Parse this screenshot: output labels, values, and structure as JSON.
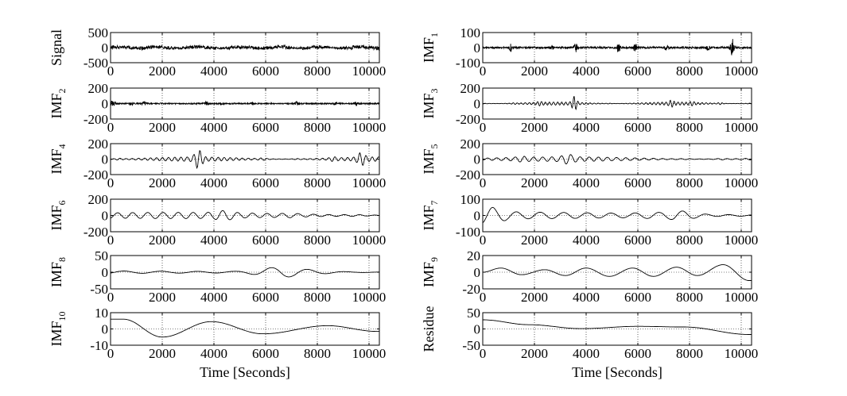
{
  "chart_data": [
    {
      "type": "line",
      "ylabel": "Signal",
      "ylim": [
        -500,
        500
      ],
      "yticks": [
        "500",
        "0",
        "-500"
      ],
      "xlim": [
        0,
        10400
      ],
      "xticks": [
        "0",
        "2000",
        "4000",
        "6000",
        "8000",
        "10000"
      ],
      "grid": true,
      "shape": {
        "kind": "noise",
        "amp": 100,
        "bursts": [
          [
            900,
            0.6
          ],
          [
            2600,
            0.5
          ],
          [
            4200,
            0.6
          ],
          [
            7200,
            0.6
          ],
          [
            8600,
            0.5
          ],
          [
            9300,
            1.3
          ],
          [
            9900,
            0.9
          ]
        ]
      }
    },
    {
      "type": "line",
      "ylabel": "IMF",
      "ylabel_sub": "1",
      "ylim": [
        -100,
        100
      ],
      "yticks": [
        "100",
        "0",
        "-100"
      ],
      "xlim": [
        0,
        10400
      ],
      "xticks": [
        "0",
        "2000",
        "4000",
        "6000",
        "8000",
        "10000"
      ],
      "grid": true,
      "shape": {
        "kind": "spiky",
        "amp": 6,
        "bursts": [
          [
            1100,
            5
          ],
          [
            2650,
            4
          ],
          [
            3600,
            7
          ],
          [
            5250,
            6
          ],
          [
            5900,
            5
          ],
          [
            7100,
            4
          ],
          [
            8700,
            4
          ],
          [
            9650,
            12
          ]
        ]
      }
    },
    {
      "type": "line",
      "ylabel": "IMF",
      "ylabel_sub": "2",
      "ylim": [
        -200,
        200
      ],
      "yticks": [
        "200",
        "0",
        "-200"
      ],
      "xlim": [
        0,
        10400
      ],
      "xticks": [
        "0",
        "2000",
        "4000",
        "6000",
        "8000",
        "10000"
      ],
      "grid": true,
      "shape": {
        "kind": "spiky",
        "amp": 8,
        "bursts": [
          [
            100,
            9
          ],
          [
            800,
            4
          ],
          [
            1300,
            4
          ],
          [
            3700,
            4
          ],
          [
            4300,
            3
          ],
          [
            5500,
            3
          ],
          [
            7200,
            4
          ],
          [
            8700,
            3
          ],
          [
            9500,
            4
          ]
        ]
      }
    },
    {
      "type": "line",
      "ylabel": "IMF",
      "ylabel_sub": "3",
      "ylim": [
        -200,
        200
      ],
      "yticks": [
        "200",
        "0",
        "-200"
      ],
      "xlim": [
        0,
        10400
      ],
      "xticks": [
        "0",
        "2000",
        "4000",
        "6000",
        "8000",
        "10000"
      ],
      "grid": true,
      "shape": {
        "kind": "osc",
        "amp": 20,
        "freq": 0.0065,
        "bursts": [
          [
            1200,
            2
          ],
          [
            2200,
            1.8
          ],
          [
            3550,
            6
          ],
          [
            4900,
            2
          ],
          [
            7300,
            2.4
          ],
          [
            8100,
            1.8
          ],
          [
            9200,
            3.2
          ]
        ]
      }
    },
    {
      "type": "line",
      "ylabel": "IMF",
      "ylabel_sub": "4",
      "ylim": [
        -200,
        200
      ],
      "yticks": [
        "200",
        "0",
        "-200"
      ],
      "xlim": [
        0,
        10400
      ],
      "xticks": [
        "0",
        "2000",
        "4000",
        "6000",
        "8000",
        "10000"
      ],
      "grid": true,
      "shape": {
        "kind": "osc",
        "amp": 28,
        "freq": 0.0042,
        "bursts": [
          [
            300,
            2.5
          ],
          [
            3400,
            4.5
          ],
          [
            5900,
            2.5
          ],
          [
            7200,
            2.2
          ],
          [
            8600,
            2
          ],
          [
            9700,
            3.5
          ]
        ]
      }
    },
    {
      "type": "line",
      "ylabel": "IMF",
      "ylabel_sub": "5",
      "ylim": [
        -200,
        200
      ],
      "yticks": [
        "200",
        "0",
        "-200"
      ],
      "xlim": [
        0,
        10400
      ],
      "xticks": [
        "0",
        "2000",
        "4000",
        "6000",
        "8000",
        "10000"
      ],
      "grid": true,
      "shape": {
        "kind": "osc",
        "amp": 30,
        "freq": 0.0028,
        "bursts": [
          [
            1500,
            1.6
          ],
          [
            3300,
            2.2
          ],
          [
            7800,
            1.8
          ],
          [
            9200,
            2.2
          ]
        ]
      }
    },
    {
      "type": "line",
      "ylabel": "IMF",
      "ylabel_sub": "6",
      "ylim": [
        -200,
        200
      ],
      "yticks": [
        "200",
        "0",
        "-200"
      ],
      "xlim": [
        0,
        10400
      ],
      "xticks": [
        "0",
        "2000",
        "4000",
        "6000",
        "8000",
        "10000"
      ],
      "grid": true,
      "shape": {
        "kind": "osc",
        "amp": 38,
        "freq": 0.0017,
        "bursts": [
          [
            4400,
            1.8
          ],
          [
            7000,
            1.4
          ],
          [
            9500,
            1.5
          ]
        ]
      }
    },
    {
      "type": "line",
      "ylabel": "IMF",
      "ylabel_sub": "7",
      "ylim": [
        -100,
        100
      ],
      "yticks": [
        "100",
        "0",
        "-100"
      ],
      "xlim": [
        0,
        10400
      ],
      "xticks": [
        "0",
        "2000",
        "4000",
        "6000",
        "8000",
        "10000"
      ],
      "grid": true,
      "shape": {
        "kind": "osc",
        "amp": 22,
        "freq": 0.0011,
        "bursts": [
          [
            200,
            2.4
          ],
          [
            6500,
            1.6
          ],
          [
            7700,
            3.2
          ]
        ]
      }
    },
    {
      "type": "line",
      "ylabel": "IMF",
      "ylabel_sub": "8",
      "ylim": [
        -50,
        50
      ],
      "yticks": [
        "50",
        "0",
        "-50"
      ],
      "xlim": [
        0,
        10400
      ],
      "xticks": [
        "0",
        "2000",
        "4000",
        "6000",
        "8000",
        "10000"
      ],
      "grid": true,
      "shape": {
        "kind": "osc",
        "amp": 5,
        "freq": 0.0007,
        "bursts": [
          [
            6600,
            9
          ],
          [
            7900,
            4
          ]
        ]
      }
    },
    {
      "type": "line",
      "ylabel": "IMF",
      "ylabel_sub": "9",
      "ylim": [
        -20,
        20
      ],
      "yticks": [
        "20",
        "0",
        "-20"
      ],
      "xlim": [
        0,
        10400
      ],
      "xticks": [
        "0",
        "2000",
        "4000",
        "6000",
        "8000",
        "10000"
      ],
      "grid": true,
      "shape": {
        "kind": "wave",
        "points": [
          [
            0,
            0
          ],
          [
            700,
            5
          ],
          [
            1500,
            -3
          ],
          [
            2400,
            3
          ],
          [
            3200,
            -4
          ],
          [
            4000,
            5
          ],
          [
            4900,
            -5
          ],
          [
            5800,
            5
          ],
          [
            6600,
            -5
          ],
          [
            7500,
            6
          ],
          [
            8300,
            -4
          ],
          [
            9300,
            9
          ],
          [
            10300,
            -10
          ]
        ]
      }
    },
    {
      "type": "line",
      "ylabel": "IMF",
      "ylabel_sub": "10",
      "ylim": [
        -10,
        10
      ],
      "yticks": [
        "10",
        "0",
        "-10"
      ],
      "xlim": [
        0,
        10400
      ],
      "xticks": [
        "0",
        "2000",
        "4000",
        "6000",
        "8000",
        "10000"
      ],
      "xlabel": "Time [Seconds]",
      "grid": true,
      "shape": {
        "kind": "wave",
        "points": [
          [
            0,
            6
          ],
          [
            500,
            6
          ],
          [
            2000,
            -5
          ],
          [
            3900,
            4.5
          ],
          [
            5900,
            -3
          ],
          [
            8400,
            2
          ],
          [
            10300,
            -1.5
          ]
        ]
      }
    },
    {
      "type": "line",
      "ylabel": "Residue",
      "ylim": [
        -50,
        50
      ],
      "yticks": [
        "50",
        "0",
        "-50"
      ],
      "xlim": [
        0,
        10400
      ],
      "xticks": [
        "0",
        "2000",
        "4000",
        "6000",
        "8000",
        "10000"
      ],
      "xlabel": "Time [Seconds]",
      "grid": true,
      "shape": {
        "kind": "wave",
        "points": [
          [
            0,
            28
          ],
          [
            1800,
            13
          ],
          [
            3800,
            1
          ],
          [
            6000,
            8
          ],
          [
            7800,
            6
          ],
          [
            10300,
            -17
          ]
        ]
      }
    }
  ]
}
